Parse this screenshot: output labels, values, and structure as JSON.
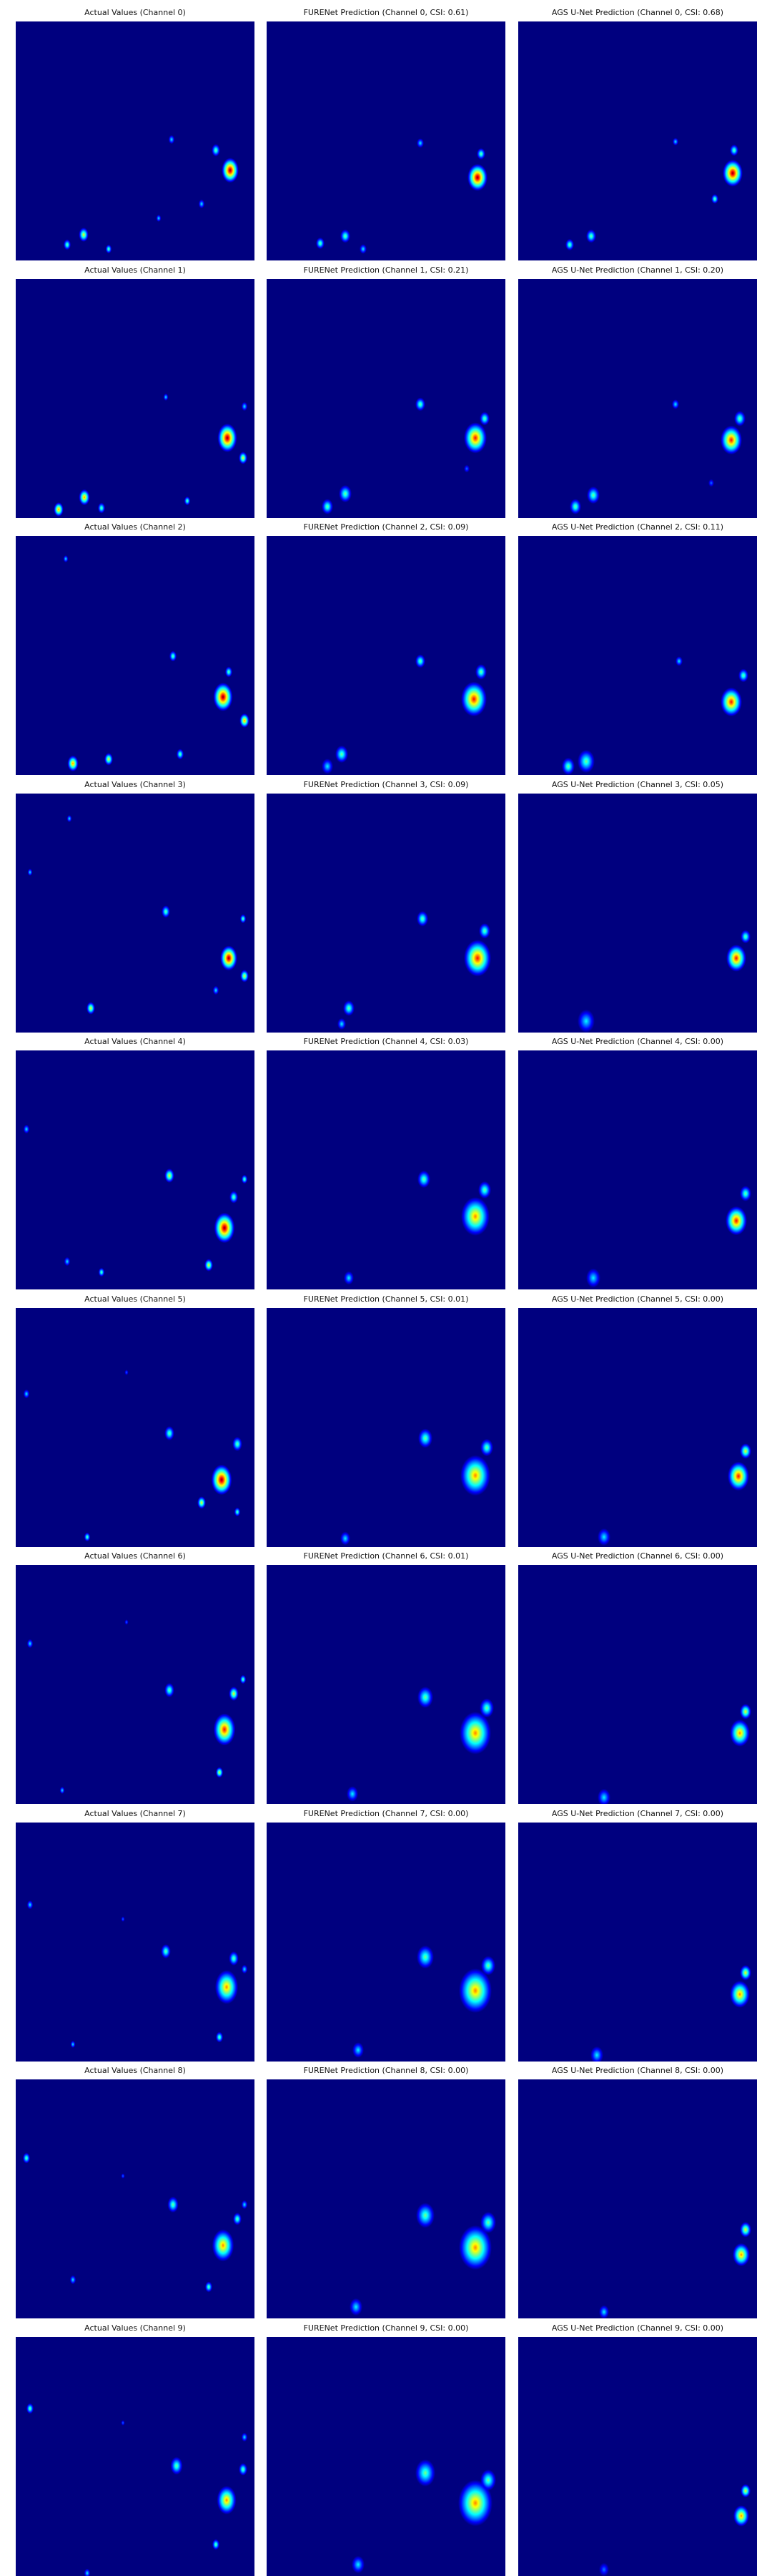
{
  "colormap": [
    "#00007f",
    "#0000ff",
    "#0080ff",
    "#00ffff",
    "#80ff80",
    "#ffff00",
    "#ff8000",
    "#ff0000",
    "#7f0000"
  ],
  "background_color": "#00007f",
  "rows": [
    {
      "titles": [
        "Actual Values (Channel 0)",
        "FURENet Prediction (Channel 0, CSI: 0.61)",
        "AGS U-Net Prediction (Channel 0, CSI: 0.68)"
      ],
      "csi": [
        null,
        0.61,
        0.68
      ]
    },
    {
      "titles": [
        "Actual Values (Channel 1)",
        "FURENet Prediction (Channel 1, CSI: 0.21)",
        "AGS U-Net Prediction (Channel 1, CSI: 0.20)"
      ],
      "csi": [
        null,
        0.21,
        0.2
      ]
    },
    {
      "titles": [
        "Actual Values (Channel 2)",
        "FURENet Prediction (Channel 2, CSI: 0.09)",
        "AGS U-Net Prediction (Channel 2, CSI: 0.11)"
      ],
      "csi": [
        null,
        0.09,
        0.11
      ]
    },
    {
      "titles": [
        "Actual Values (Channel 3)",
        "FURENet Prediction (Channel 3, CSI: 0.09)",
        "AGS U-Net Prediction (Channel 3, CSI: 0.05)"
      ],
      "csi": [
        null,
        0.09,
        0.05
      ]
    },
    {
      "titles": [
        "Actual Values (Channel 4)",
        "FURENet Prediction (Channel 4, CSI: 0.03)",
        "AGS U-Net Prediction (Channel 4, CSI: 0.00)"
      ],
      "csi": [
        null,
        0.03,
        0.0
      ]
    },
    {
      "titles": [
        "Actual Values (Channel 5)",
        "FURENet Prediction (Channel 5, CSI: 0.01)",
        "AGS U-Net Prediction (Channel 5, CSI: 0.00)"
      ],
      "csi": [
        null,
        0.01,
        0.0
      ]
    },
    {
      "titles": [
        "Actual Values (Channel 6)",
        "FURENet Prediction (Channel 6, CSI: 0.01)",
        "AGS U-Net Prediction (Channel 6, CSI: 0.00)"
      ],
      "csi": [
        null,
        0.01,
        0.0
      ]
    },
    {
      "titles": [
        "Actual Values (Channel 7)",
        "FURENet Prediction (Channel 7, CSI: 0.00)",
        "AGS U-Net Prediction (Channel 7, CSI: 0.00)"
      ],
      "csi": [
        null,
        0.0,
        0.0
      ]
    },
    {
      "titles": [
        "Actual Values (Channel 8)",
        "FURENet Prediction (Channel 8, CSI: 0.00)",
        "AGS U-Net Prediction (Channel 8, CSI: 0.00)"
      ],
      "csi": [
        null,
        0.0,
        0.0
      ]
    },
    {
      "titles": [
        "Actual Values (Channel 9)",
        "FURENet Prediction (Channel 9, CSI: 0.00)",
        "AGS U-Net Prediction (Channel 9, CSI: 0.00)"
      ],
      "csi": [
        null,
        0.0,
        0.0
      ]
    }
  ]
}
